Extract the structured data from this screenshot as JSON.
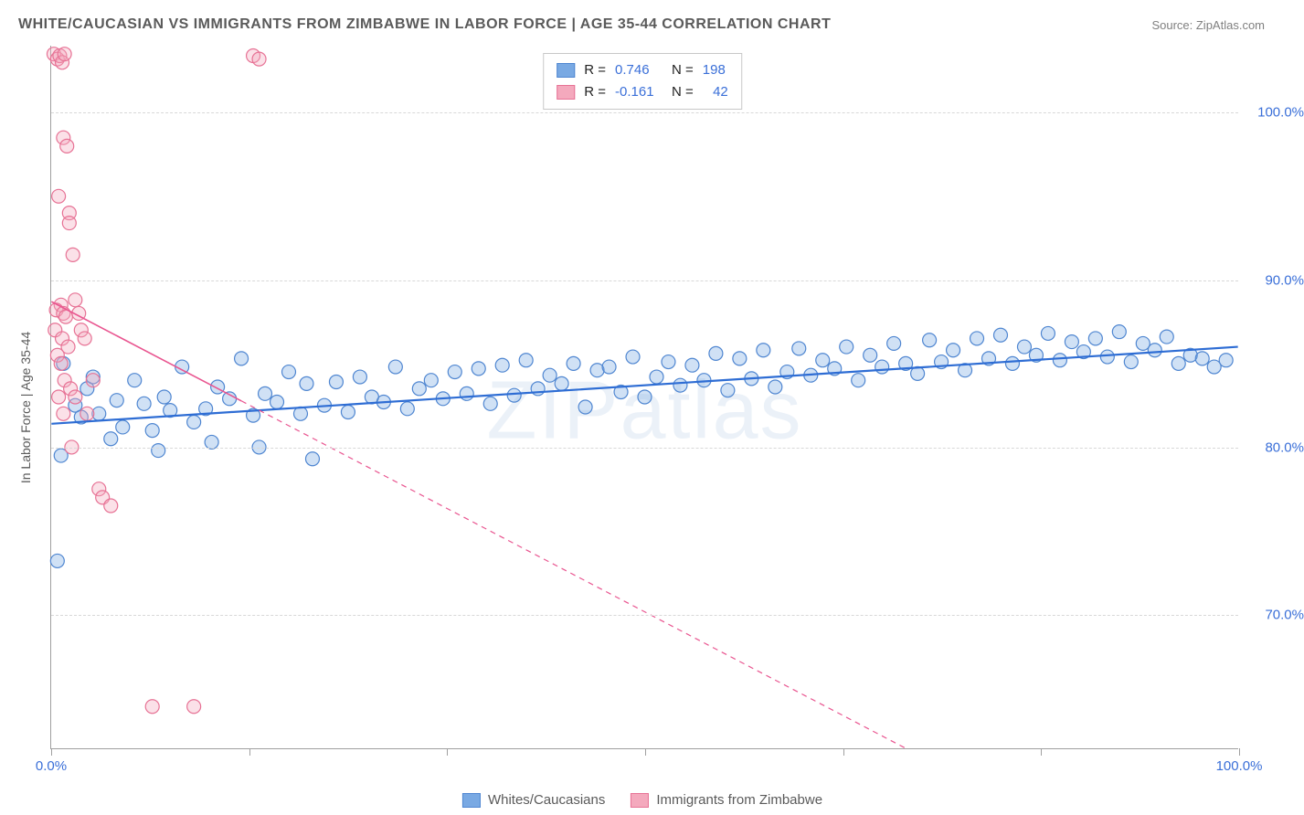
{
  "title": "WHITE/CAUCASIAN VS IMMIGRANTS FROM ZIMBABWE IN LABOR FORCE | AGE 35-44 CORRELATION CHART",
  "source": "Source: ZipAtlas.com",
  "watermark": "ZIPatlas",
  "ylabel": "In Labor Force | Age 35-44",
  "chart": {
    "type": "scatter",
    "xlim": [
      0,
      100
    ],
    "ylim": [
      62,
      104
    ],
    "xtick_positions": [
      0,
      16.67,
      33.33,
      50,
      66.67,
      83.33,
      100
    ],
    "xtick_labels": [
      "0.0%",
      "",
      "",
      "",
      "",
      "",
      "100.0%"
    ],
    "ytick_positions": [
      70,
      80,
      90,
      100
    ],
    "ytick_labels": [
      "70.0%",
      "80.0%",
      "90.0%",
      "100.0%"
    ],
    "background_color": "#ffffff",
    "grid_color": "#d8d8d8",
    "marker_radius": 7.5,
    "marker_fill_opacity": 0.35,
    "marker_stroke_width": 1.2,
    "series": [
      {
        "name": "Whites/Caucasians",
        "color_fill": "#79a9e3",
        "color_stroke": "#4f86d1",
        "R": "0.746",
        "N": "198",
        "trend": {
          "x1": 0,
          "y1": 81.4,
          "x2": 100,
          "y2": 86.0,
          "color": "#2e6dd4",
          "width": 2.2,
          "dash": ""
        },
        "points": [
          [
            0.5,
            73.2
          ],
          [
            0.8,
            79.5
          ],
          [
            1.0,
            85.0
          ],
          [
            2.0,
            82.5
          ],
          [
            2.5,
            81.8
          ],
          [
            3.0,
            83.5
          ],
          [
            3.5,
            84.2
          ],
          [
            4.0,
            82.0
          ],
          [
            5.0,
            80.5
          ],
          [
            5.5,
            82.8
          ],
          [
            6.0,
            81.2
          ],
          [
            7.0,
            84.0
          ],
          [
            7.8,
            82.6
          ],
          [
            8.5,
            81.0
          ],
          [
            9.0,
            79.8
          ],
          [
            9.5,
            83.0
          ],
          [
            10.0,
            82.2
          ],
          [
            11.0,
            84.8
          ],
          [
            12.0,
            81.5
          ],
          [
            13.0,
            82.3
          ],
          [
            13.5,
            80.3
          ],
          [
            14.0,
            83.6
          ],
          [
            15.0,
            82.9
          ],
          [
            16.0,
            85.3
          ],
          [
            17.0,
            81.9
          ],
          [
            17.5,
            80.0
          ],
          [
            18.0,
            83.2
          ],
          [
            19.0,
            82.7
          ],
          [
            20.0,
            84.5
          ],
          [
            21.0,
            82.0
          ],
          [
            21.5,
            83.8
          ],
          [
            22.0,
            79.3
          ],
          [
            23.0,
            82.5
          ],
          [
            24.0,
            83.9
          ],
          [
            25.0,
            82.1
          ],
          [
            26.0,
            84.2
          ],
          [
            27.0,
            83.0
          ],
          [
            28.0,
            82.7
          ],
          [
            29.0,
            84.8
          ],
          [
            30.0,
            82.3
          ],
          [
            31.0,
            83.5
          ],
          [
            32.0,
            84.0
          ],
          [
            33.0,
            82.9
          ],
          [
            34.0,
            84.5
          ],
          [
            35.0,
            83.2
          ],
          [
            36.0,
            84.7
          ],
          [
            37.0,
            82.6
          ],
          [
            38.0,
            84.9
          ],
          [
            39.0,
            83.1
          ],
          [
            40.0,
            85.2
          ],
          [
            41.0,
            83.5
          ],
          [
            42.0,
            84.3
          ],
          [
            43.0,
            83.8
          ],
          [
            44.0,
            85.0
          ],
          [
            45.0,
            82.4
          ],
          [
            46.0,
            84.6
          ],
          [
            47.0,
            84.8
          ],
          [
            48.0,
            83.3
          ],
          [
            49.0,
            85.4
          ],
          [
            50.0,
            83.0
          ],
          [
            51.0,
            84.2
          ],
          [
            52.0,
            85.1
          ],
          [
            53.0,
            83.7
          ],
          [
            54.0,
            84.9
          ],
          [
            55.0,
            84.0
          ],
          [
            56.0,
            85.6
          ],
          [
            57.0,
            83.4
          ],
          [
            58.0,
            85.3
          ],
          [
            59.0,
            84.1
          ],
          [
            60.0,
            85.8
          ],
          [
            61.0,
            83.6
          ],
          [
            62.0,
            84.5
          ],
          [
            63.0,
            85.9
          ],
          [
            64.0,
            84.3
          ],
          [
            65.0,
            85.2
          ],
          [
            66.0,
            84.7
          ],
          [
            67.0,
            86.0
          ],
          [
            68.0,
            84.0
          ],
          [
            69.0,
            85.5
          ],
          [
            70.0,
            84.8
          ],
          [
            71.0,
            86.2
          ],
          [
            72.0,
            85.0
          ],
          [
            73.0,
            84.4
          ],
          [
            74.0,
            86.4
          ],
          [
            75.0,
            85.1
          ],
          [
            76.0,
            85.8
          ],
          [
            77.0,
            84.6
          ],
          [
            78.0,
            86.5
          ],
          [
            79.0,
            85.3
          ],
          [
            80.0,
            86.7
          ],
          [
            81.0,
            85.0
          ],
          [
            82.0,
            86.0
          ],
          [
            83.0,
            85.5
          ],
          [
            84.0,
            86.8
          ],
          [
            85.0,
            85.2
          ],
          [
            86.0,
            86.3
          ],
          [
            87.0,
            85.7
          ],
          [
            88.0,
            86.5
          ],
          [
            89.0,
            85.4
          ],
          [
            90.0,
            86.9
          ],
          [
            91.0,
            85.1
          ],
          [
            92.0,
            86.2
          ],
          [
            93.0,
            85.8
          ],
          [
            94.0,
            86.6
          ],
          [
            95.0,
            85.0
          ],
          [
            96.0,
            85.5
          ],
          [
            97.0,
            85.3
          ],
          [
            98.0,
            84.8
          ],
          [
            99.0,
            85.2
          ]
        ]
      },
      {
        "name": "Immigrants from Zimbabwe",
        "color_fill": "#f4a9bd",
        "color_stroke": "#e77295",
        "R": "-0.161",
        "N": "42",
        "trend": {
          "x1": 0,
          "y1": 88.7,
          "x2": 72,
          "y2": 62.0,
          "color": "#e95590",
          "width": 1.6,
          "dash": "6,5",
          "solid_until": 16
        },
        "points": [
          [
            0.2,
            103.5
          ],
          [
            0.5,
            103.2
          ],
          [
            0.7,
            103.4
          ],
          [
            0.9,
            103.0
          ],
          [
            1.1,
            103.5
          ],
          [
            1.0,
            98.5
          ],
          [
            1.3,
            98.0
          ],
          [
            0.6,
            95.0
          ],
          [
            1.5,
            94.0
          ],
          [
            1.5,
            93.4
          ],
          [
            1.8,
            91.5
          ],
          [
            0.8,
            88.5
          ],
          [
            0.4,
            88.2
          ],
          [
            1.0,
            88.0
          ],
          [
            1.2,
            87.8
          ],
          [
            0.3,
            87.0
          ],
          [
            0.9,
            86.5
          ],
          [
            1.4,
            86.0
          ],
          [
            0.5,
            85.5
          ],
          [
            0.8,
            85.0
          ],
          [
            1.1,
            84.0
          ],
          [
            1.6,
            83.5
          ],
          [
            0.6,
            83.0
          ],
          [
            1.0,
            82.0
          ],
          [
            2.0,
            88.8
          ],
          [
            2.3,
            88.0
          ],
          [
            2.5,
            87.0
          ],
          [
            2.8,
            86.5
          ],
          [
            1.7,
            80.0
          ],
          [
            2.0,
            83.0
          ],
          [
            3.0,
            82.0
          ],
          [
            3.5,
            84.0
          ],
          [
            4.0,
            77.5
          ],
          [
            4.3,
            77.0
          ],
          [
            5.0,
            76.5
          ],
          [
            17.0,
            103.4
          ],
          [
            17.5,
            103.2
          ],
          [
            8.5,
            64.5
          ],
          [
            12.0,
            64.5
          ]
        ]
      }
    ]
  },
  "legend_bottom": [
    {
      "swatch": "blue",
      "label": "Whites/Caucasians"
    },
    {
      "swatch": "pink",
      "label": "Immigrants from Zimbabwe"
    }
  ]
}
